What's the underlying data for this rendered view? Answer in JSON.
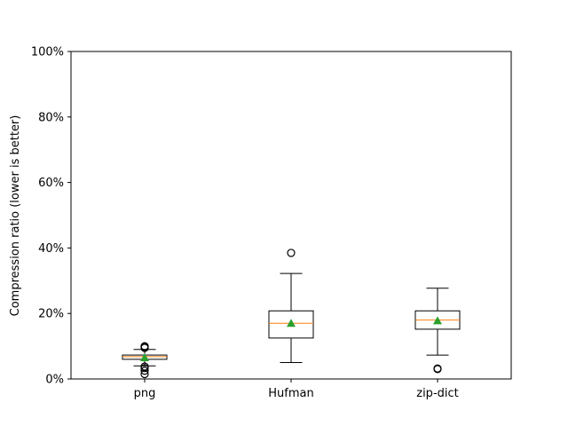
{
  "chart_data": {
    "type": "box",
    "title": "",
    "xlabel": "",
    "ylabel": "Compression ratio (lower is better)",
    "ylim": [
      0,
      100
    ],
    "y_ticks": [
      "0%",
      "20%",
      "40%",
      "60%",
      "80%",
      "100%"
    ],
    "y_tick_values": [
      0,
      20,
      40,
      60,
      80,
      100
    ],
    "grid": false,
    "categories": [
      "png",
      "Hufman",
      "zip-dict"
    ],
    "boxes": [
      {
        "name": "png",
        "whisker_low": 4.0,
        "q1": 6.0,
        "median": 6.8,
        "q3": 7.3,
        "whisker_high": 9.0,
        "mean": 6.5,
        "outliers": [
          9.5,
          9.8,
          10.0,
          3.8,
          3.3,
          2.5,
          1.5
        ]
      },
      {
        "name": "Hufman",
        "whisker_low": 5.0,
        "q1": 12.5,
        "median": 17.0,
        "q3": 20.8,
        "whisker_high": 32.2,
        "mean": 17.0,
        "outliers": [
          38.5
        ]
      },
      {
        "name": "zip-dict",
        "whisker_low": 7.3,
        "q1": 15.2,
        "median": 18.0,
        "q3": 20.8,
        "whisker_high": 27.7,
        "mean": 17.8,
        "outliers": [
          3.2,
          3.0
        ]
      }
    ],
    "colors": {
      "median": "#ff7f0e",
      "mean": "#2ca02c",
      "box": "#000000"
    }
  }
}
